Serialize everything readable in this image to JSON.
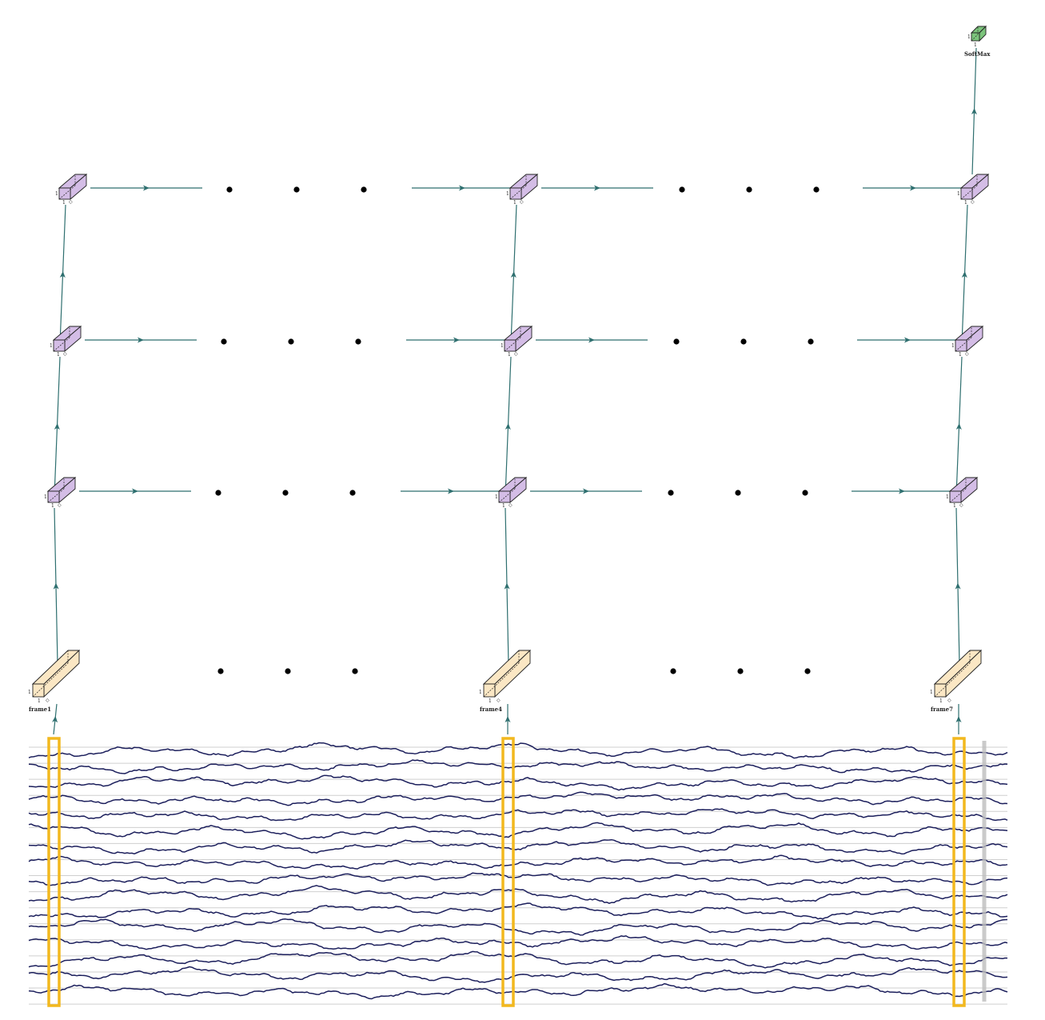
{
  "frames": [
    {
      "label": "frame1",
      "dims": [
        "1",
        "1"
      ]
    },
    {
      "label": "frame4",
      "dims": [
        "1",
        "1"
      ]
    },
    {
      "label": "frame7",
      "dims": [
        "1",
        "1"
      ]
    }
  ],
  "output": {
    "label": "SoftMax",
    "dims": [
      "1",
      "1"
    ]
  },
  "lstm_layers": 3,
  "lstm_cell_dims": [
    "1",
    "1"
  ],
  "colors": {
    "frame_fill": "#fbe7c4",
    "lstm_fill": "#d4bde6",
    "softmax_fill": "#7cc47c",
    "arrow": "#2e6f6f",
    "highlight": "#f2b81e",
    "trace": "#1c1f5c",
    "grid": "#cfcfcf"
  },
  "signal_channels": 16
}
